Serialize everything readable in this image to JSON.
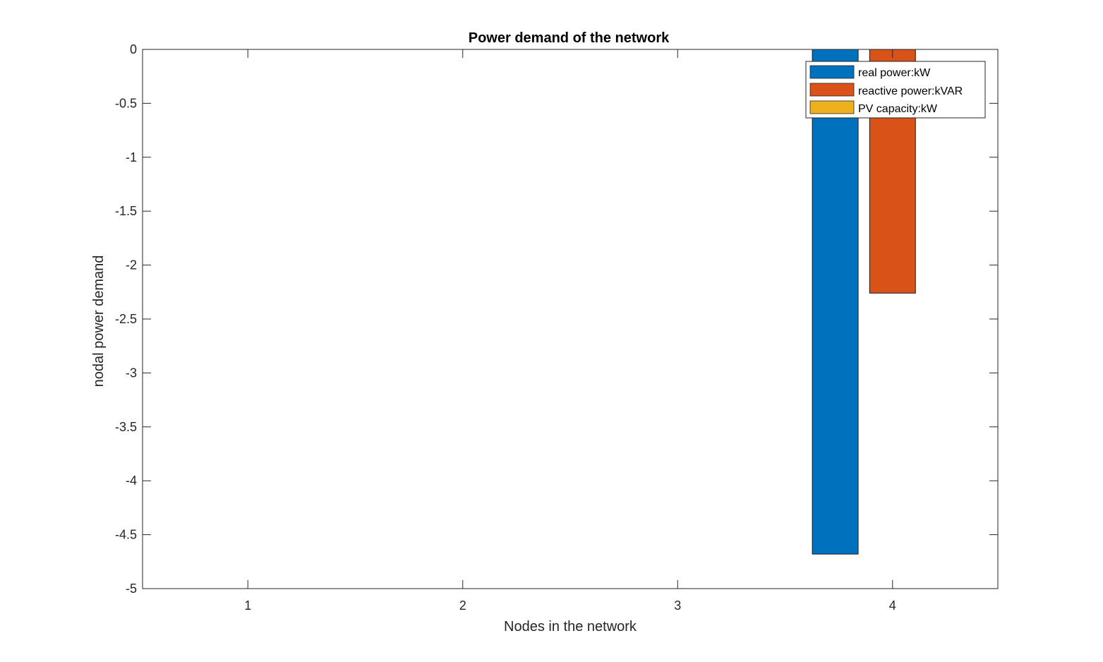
{
  "chart_data": {
    "type": "bar",
    "title": "Power demand of the network",
    "xlabel": "Nodes in the network",
    "ylabel": "nodal power demand",
    "categories": [
      "1",
      "2",
      "3",
      "4"
    ],
    "series": [
      {
        "name": "real power:kW",
        "values": [
          0,
          0,
          0,
          -4.68
        ],
        "color": "#0072BD"
      },
      {
        "name": "reactive power:kVAR",
        "values": [
          0,
          0,
          0,
          -2.26
        ],
        "color": "#D95319"
      },
      {
        "name": "PV capacity:kW",
        "values": [
          0,
          0,
          0,
          0
        ],
        "color": "#EDB120"
      }
    ],
    "ylim": [
      -5,
      0
    ],
    "yticks": [
      "0",
      "-0.5",
      "-1",
      "-1.5",
      "-2",
      "-2.5",
      "-3",
      "-3.5",
      "-4",
      "-4.5",
      "-5"
    ],
    "ytick_values": [
      0,
      -0.5,
      -1,
      -1.5,
      -2,
      -2.5,
      -3,
      -3.5,
      -4,
      -4.5,
      -5
    ],
    "xlim": [
      0.51,
      4.49
    ],
    "grid": false,
    "legend_position": "top-right"
  }
}
